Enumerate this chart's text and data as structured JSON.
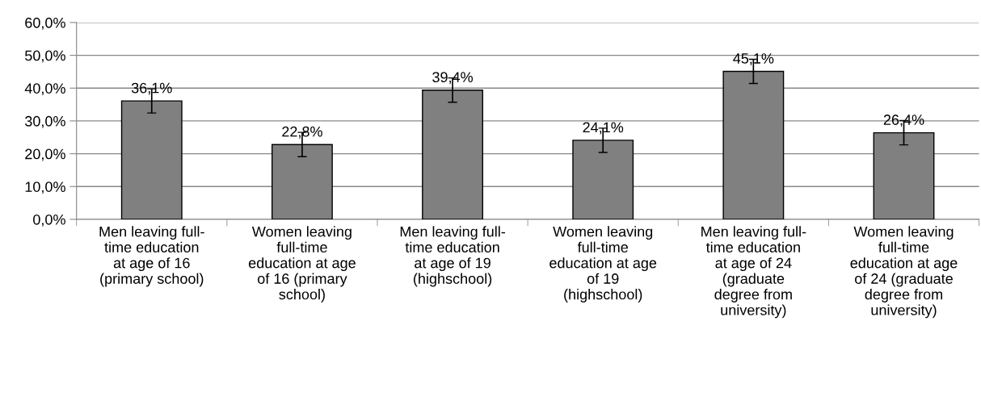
{
  "chart_data": {
    "type": "bar",
    "categories": [
      "Men leaving full-\ntime education\nat age of 16\n(primary school)",
      "Women leaving\nfull-time\neducation at age\nof 16 (primary\nschool)",
      "Men leaving full-\ntime education\nat age of 19\n(highschool)",
      "Women leaving\nfull-time\neducation at age\nof 19\n(highschool)",
      "Men leaving full-\ntime education\nat age of 24\n(graduate\ndegree from\nuniversity)",
      "Women leaving\nfull-time\neducation at age\nof 24 (graduate\ndegree from\nuniversity)"
    ],
    "values": [
      36.1,
      22.8,
      39.4,
      24.1,
      45.1,
      26.4
    ],
    "errors": [
      3.7,
      3.7,
      3.7,
      3.7,
      3.7,
      3.7
    ],
    "value_labels": [
      "36,1%",
      "22,8%",
      "39,4%",
      "24,1%",
      "45,1%",
      "26,4%"
    ],
    "color": "#808080",
    "ylim": [
      0,
      60
    ],
    "yticks": [
      {
        "value": 0,
        "label": "0,0%"
      },
      {
        "value": 10,
        "label": "10,0%"
      },
      {
        "value": 20,
        "label": "20,0%"
      },
      {
        "value": 30,
        "label": "30,0%"
      },
      {
        "value": 40,
        "label": "40,0%"
      },
      {
        "value": 50,
        "label": "50,0%"
      },
      {
        "value": 60,
        "label": "60,0%"
      }
    ],
    "grid": "y"
  }
}
